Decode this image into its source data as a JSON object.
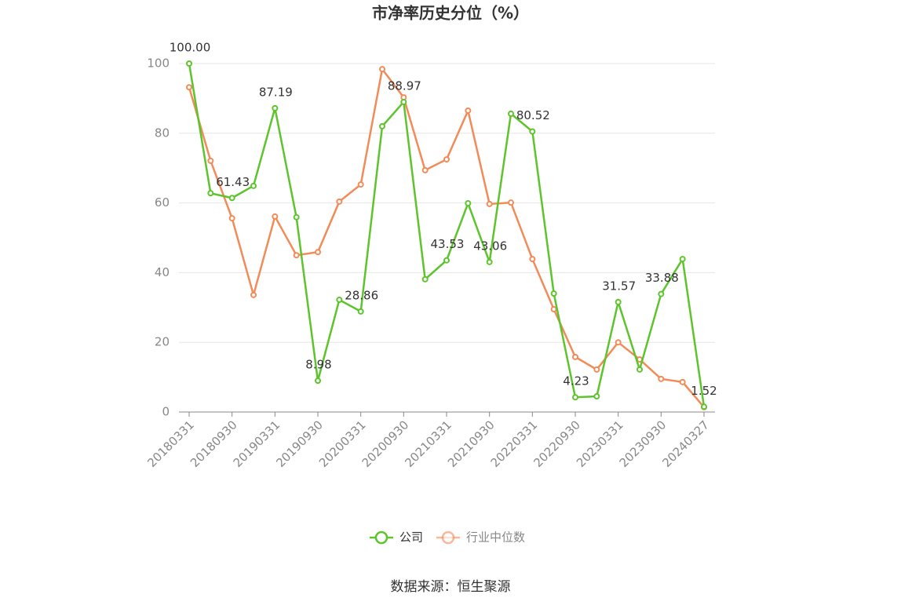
{
  "chart_data": {
    "type": "line",
    "title": "市净率历史分位（%）",
    "categories": [
      "20180331",
      null,
      "20180930",
      null,
      "20190331",
      null,
      "20190930",
      null,
      "20200331",
      null,
      "20200930",
      null,
      "20210331",
      null,
      "20210930",
      null,
      "20220331",
      null,
      "20220930",
      null,
      "20230331",
      null,
      "20230930",
      null,
      "20240327"
    ],
    "series": [
      {
        "name": "公司",
        "color": "#5dc42c",
        "values": [
          100,
          62.8,
          61.43,
          64.9,
          87.19,
          55.9,
          8.98,
          32.2,
          28.86,
          82.0,
          88.97,
          38.1,
          43.53,
          59.9,
          43.06,
          85.6,
          80.52,
          34.0,
          4.23,
          4.5,
          31.57,
          12.2,
          33.88,
          43.9,
          1.52
        ],
        "value_labels": [
          "100.00",
          null,
          "61.43",
          null,
          "87.19",
          null,
          "8.98",
          null,
          "28.86",
          null,
          "88.97",
          null,
          "43.53",
          null,
          "43.06",
          null,
          "80.52",
          null,
          "4.23",
          null,
          "31.57",
          null,
          "33.88",
          null,
          "1.52"
        ]
      },
      {
        "name": "行业中位数",
        "color": "#f28b58",
        "values": [
          93.2,
          72.1,
          55.6,
          33.6,
          56.1,
          45.0,
          45.9,
          60.4,
          65.3,
          98.4,
          90.3,
          69.4,
          72.5,
          86.5,
          59.7,
          60.1,
          43.9,
          29.5,
          15.8,
          12.2,
          20.0,
          15.1,
          9.5,
          8.6,
          1.4
        ]
      }
    ],
    "ylim": [
      0,
      100
    ],
    "yticks": [
      0,
      20,
      40,
      60,
      80,
      100
    ],
    "grid": true,
    "source": "数据来源：恒生聚源"
  }
}
